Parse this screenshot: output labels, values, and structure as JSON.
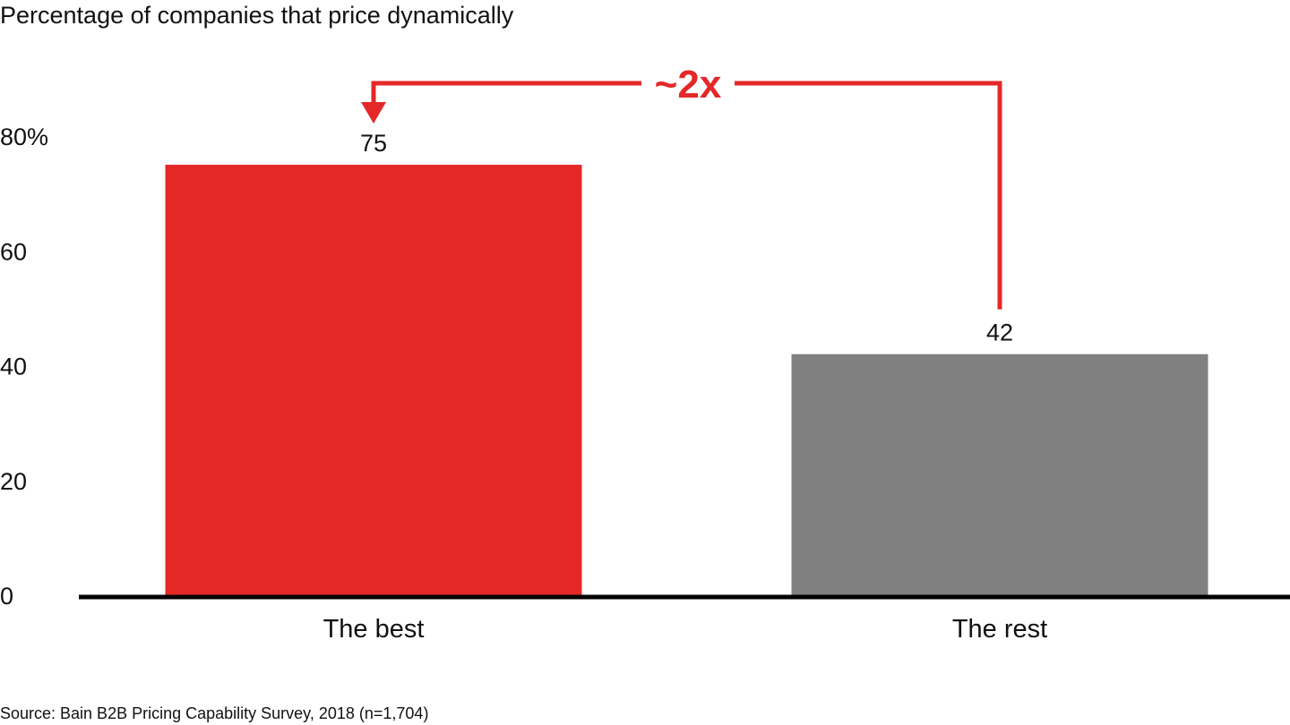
{
  "chart_data": {
    "type": "bar",
    "title": "Percentage of companies that price dynamically",
    "categories": [
      "The best",
      "The rest"
    ],
    "values": [
      75,
      42
    ],
    "value_labels": [
      "75",
      "42"
    ],
    "bar_colors": [
      "#e42828",
      "#808080"
    ],
    "ylim": [
      0,
      80
    ],
    "yticks": [
      0,
      20,
      40,
      60,
      80
    ],
    "ytick_labels": [
      "0",
      "20",
      "40",
      "60",
      "80%"
    ],
    "xlabel": "",
    "ylabel": "",
    "grid": false,
    "annotation": {
      "text": "~2x",
      "color": "#e42828",
      "from_category": "The rest",
      "to_category": "The best"
    },
    "source": "Source: Bain B2B Pricing Capability Survey, 2018 (n=1,704)"
  }
}
